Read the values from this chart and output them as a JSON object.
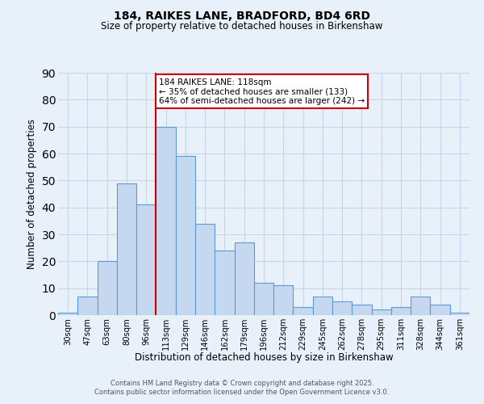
{
  "title": "184, RAIKES LANE, BRADFORD, BD4 6RD",
  "subtitle": "Size of property relative to detached houses in Birkenshaw",
  "xlabel": "Distribution of detached houses by size in Birkenshaw",
  "ylabel": "Number of detached properties",
  "bar_labels": [
    "30sqm",
    "47sqm",
    "63sqm",
    "80sqm",
    "96sqm",
    "113sqm",
    "129sqm",
    "146sqm",
    "162sqm",
    "179sqm",
    "196sqm",
    "212sqm",
    "229sqm",
    "245sqm",
    "262sqm",
    "278sqm",
    "295sqm",
    "311sqm",
    "328sqm",
    "344sqm",
    "361sqm"
  ],
  "bar_values": [
    1,
    7,
    20,
    49,
    41,
    70,
    59,
    34,
    24,
    27,
    12,
    11,
    3,
    7,
    5,
    4,
    2,
    3,
    7,
    4,
    1
  ],
  "bar_color": "#c5d8f0",
  "bar_edge_color": "#5b9bd5",
  "vline_x_idx": 5,
  "vline_color": "#cc0000",
  "annotation_text": "184 RAIKES LANE: 118sqm\n← 35% of detached houses are smaller (133)\n64% of semi-detached houses are larger (242) →",
  "annotation_box_color": "#ffffff",
  "annotation_box_edge": "#cc0000",
  "bg_color": "#e8f0fa",
  "plot_bg_color": "#e8f0fa",
  "grid_color": "#c8d4e8",
  "ylim": [
    0,
    90
  ],
  "yticks": [
    0,
    10,
    20,
    30,
    40,
    50,
    60,
    70,
    80,
    90
  ],
  "footer1": "Contains HM Land Registry data © Crown copyright and database right 2025.",
  "footer2": "Contains public sector information licensed under the Open Government Licence v3.0."
}
